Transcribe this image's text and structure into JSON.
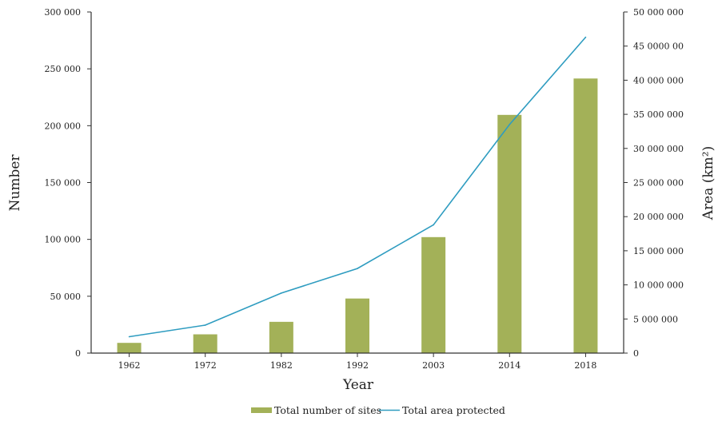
{
  "chart_data": {
    "type": "bar",
    "xlabel": "Year",
    "ylabel": "Number",
    "y2label": "Area (km²)",
    "categories": [
      "1962",
      "1972",
      "1982",
      "1992",
      "2003",
      "2014",
      "2018"
    ],
    "ylim": [
      0,
      300000
    ],
    "y2lim": [
      0,
      50000000
    ],
    "yticks": [
      {
        "value": 0,
        "label": "0"
      },
      {
        "value": 50000,
        "label": "50 000"
      },
      {
        "value": 100000,
        "label": "100 000"
      },
      {
        "value": 150000,
        "label": "150 000"
      },
      {
        "value": 200000,
        "label": "200 000"
      },
      {
        "value": 250000,
        "label": "250 000"
      },
      {
        "value": 300000,
        "label": "300 000"
      }
    ],
    "y2ticks": [
      {
        "value": 0,
        "label": "0"
      },
      {
        "value": 5000000,
        "label": "5 000 000"
      },
      {
        "value": 10000000,
        "label": "10 000 000"
      },
      {
        "value": 15000000,
        "label": "15 000 000"
      },
      {
        "value": 20000000,
        "label": "20 000 000"
      },
      {
        "value": 25000000,
        "label": "25 000 000"
      },
      {
        "value": 30000000,
        "label": "30 000 000"
      },
      {
        "value": 35000000,
        "label": "35 000 000"
      },
      {
        "value": 40000000,
        "label": "40 000 000"
      },
      {
        "value": 45000000,
        "label": "45 0000 00"
      },
      {
        "value": 50000000,
        "label": "50 000 000"
      }
    ],
    "series": [
      {
        "name": "Total number of sites",
        "type": "bar",
        "axis": "left",
        "color": "#a3b158",
        "values": [
          9000,
          16500,
          27500,
          48000,
          102000,
          209500,
          241500
        ]
      },
      {
        "name": "Total area protected",
        "type": "line",
        "axis": "right",
        "color": "#2e9cc0",
        "values": [
          2400000,
          4100000,
          8800000,
          12400000,
          18800000,
          33500000,
          46300000
        ]
      }
    ],
    "legend_position": "bottom",
    "grid": false
  }
}
